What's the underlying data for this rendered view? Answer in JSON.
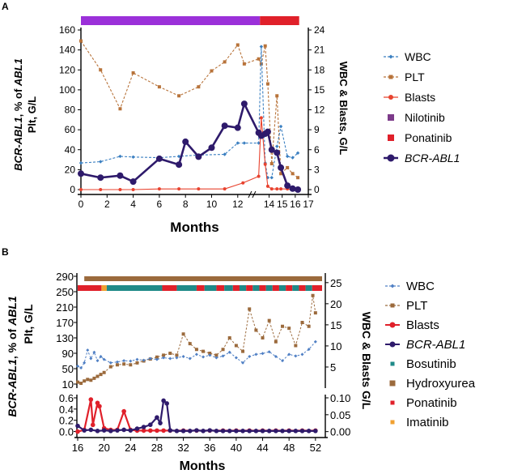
{
  "figure": {
    "panel_a_label": "A",
    "panel_b_label": "B"
  },
  "chart_data": [
    {
      "panel": "A",
      "type": "line",
      "xlabel": "Months",
      "ylabel_left_main": "BCR-ABL1, % of ABL1",
      "ylabel_left_sub": "Plt, G/L",
      "ylabel_right": "WBC & Blasts, G/L",
      "xlim": [
        0,
        17
      ],
      "ylim_left": [
        0,
        160
      ],
      "ylim_right": [
        0,
        24
      ],
      "x_ticks": [
        0,
        2,
        4,
        6,
        8,
        10,
        12,
        14,
        15,
        16,
        17
      ],
      "x_tick_labels": [
        "0",
        "2",
        "4",
        "6",
        "8",
        "10",
        "12",
        "14",
        "15",
        "16",
        "17"
      ],
      "x_tick_positions": [
        0,
        2,
        4,
        6,
        8,
        10,
        12,
        14.4,
        15.4,
        16.4,
        17.4
      ],
      "y_left_ticks": [
        0,
        20,
        40,
        60,
        80,
        100,
        120,
        140,
        160
      ],
      "y_right_ticks": [
        0,
        3,
        6,
        9,
        12,
        15,
        18,
        21,
        24
      ],
      "axis_break_x": 13.0,
      "treatment_bars": [
        {
          "name": "Nilotinib",
          "color": "#9b30d9",
          "start": 0,
          "end": 13.7
        },
        {
          "name": "Ponatinib",
          "color": "#e0202a",
          "start": 13.7,
          "end": 16.7
        }
      ],
      "series": [
        {
          "name": "WBC",
          "axis": "right",
          "color": "#3a7fc1",
          "style": "dashed",
          "marker": "diamond",
          "x": [
            0,
            1.5,
            3,
            4,
            6,
            7.5,
            9,
            11,
            12,
            12.5,
            13.6,
            13.8,
            14.1,
            14.3,
            14.6,
            15,
            15.3,
            15.8,
            16.2,
            16.6
          ],
          "y": [
            4,
            4.2,
            5,
            4.9,
            4.8,
            5,
            5.2,
            5.3,
            7,
            7,
            7,
            21.5,
            4,
            1.8,
            1.8,
            6.5,
            9.5,
            5,
            4.8,
            5.5
          ]
        },
        {
          "name": "PLT",
          "axis": "left",
          "color": "#b8733a",
          "style": "dashed",
          "marker": "square",
          "x": [
            0,
            1.5,
            3,
            4,
            6,
            7.5,
            9,
            10,
            11,
            12,
            12.5,
            13.6,
            13.8,
            14.1,
            14.3,
            14.6,
            15,
            15.3,
            15.8,
            16.2,
            16.6
          ],
          "y": [
            149,
            120,
            81,
            117,
            103,
            94,
            103,
            119,
            128,
            145,
            126,
            131,
            126,
            144,
            106,
            26,
            94,
            16,
            22,
            16,
            12
          ]
        },
        {
          "name": "Blasts",
          "axis": "right",
          "color": "#e8432f",
          "style": "solid",
          "marker": "circle",
          "x": [
            0,
            1.5,
            3,
            4,
            6,
            7.5,
            9,
            11,
            12.4,
            13.6,
            13.8,
            14.1,
            14.3,
            14.6,
            15,
            15.3,
            15.8,
            16.2,
            16.6
          ],
          "y": [
            0,
            0,
            0,
            0,
            0.1,
            0.1,
            0.1,
            0.1,
            1,
            2,
            10.8,
            3.8,
            0.5,
            0.1,
            0.1,
            0.1,
            0.1,
            0,
            0
          ]
        },
        {
          "name": "BCR-ABL1",
          "axis": "left",
          "color": "#2e1a6b",
          "style": "solid-thick",
          "marker": "circle",
          "x": [
            0,
            1.5,
            3,
            4,
            6,
            7.5,
            8,
            9,
            10,
            11,
            12,
            12.5,
            13.6,
            13.8,
            14.1,
            14.3,
            14.6,
            15,
            15.3,
            15.8,
            16.2,
            16.6
          ],
          "y": [
            16,
            12,
            14,
            8,
            31,
            25,
            48,
            33,
            42,
            64,
            62,
            86,
            57,
            54,
            56,
            58,
            40,
            37,
            22,
            4,
            1,
            0
          ]
        }
      ],
      "legend": [
        "WBC",
        "PLT",
        "Blasts",
        "Nilotinib",
        "Ponatinib",
        "BCR-ABL1"
      ]
    },
    {
      "panel": "B",
      "type": "line",
      "xlabel": "Months",
      "ylabel_left_main": "BCR-ABL1, % of ABL1",
      "ylabel_left_sub": "Plt, G/L",
      "ylabel_right": "WBC & Blasts G/L",
      "xlim": [
        16,
        53
      ],
      "x_ticks": [
        16,
        20,
        24,
        28,
        32,
        36,
        40,
        44,
        48,
        52
      ],
      "upper": {
        "ylim_left": [
          10,
          290
        ],
        "y_left_ticks": [
          10,
          50,
          90,
          130,
          170,
          210,
          250,
          290
        ],
        "ylim_right": [
          0,
          26.5
        ],
        "y_right_ticks": [
          5,
          10,
          15,
          20,
          25
        ]
      },
      "lower": {
        "ylim_left": [
          -0.05,
          0.6
        ],
        "y_left_ticks": [
          0.0,
          0.2,
          0.4,
          0.6
        ],
        "ylim_right": [
          -0.008,
          0.1
        ],
        "y_right_ticks": [
          0.0,
          0.05,
          0.1
        ],
        "y_right_tick_labels": [
          "0.00",
          "0.05",
          "0.10"
        ]
      },
      "treatment_bars": [
        {
          "name": "Hydroxyurea",
          "color": "#9b6a3c",
          "start": 17,
          "end": 53,
          "row": "top"
        },
        {
          "name": "Ponatinib",
          "color": "#e0202a",
          "start": 16,
          "end": 19.6,
          "row": "bottom"
        },
        {
          "name": "Imatinib",
          "color": "#f0a030",
          "start": 19.6,
          "end": 20.4,
          "row": "bottom"
        },
        {
          "name": "Bosutinib",
          "color": "#1f8a88",
          "start": 20.4,
          "end": 28.8,
          "row": "bottom"
        },
        {
          "name": "Ponatinib",
          "color": "#e0202a",
          "start": 28.8,
          "end": 31,
          "row": "bottom"
        },
        {
          "name": "Bosutinib",
          "color": "#1f8a88",
          "start": 31,
          "end": 34,
          "row": "bottom"
        },
        {
          "name": "Ponatinib",
          "color": "#e0202a",
          "start": 34,
          "end": 35.2,
          "row": "bottom"
        },
        {
          "name": "Bosutinib",
          "color": "#1f8a88",
          "start": 35.2,
          "end": 37,
          "row": "bottom"
        },
        {
          "name": "Ponatinib",
          "color": "#e0202a",
          "start": 37,
          "end": 38.2,
          "row": "bottom"
        },
        {
          "name": "Bosutinib",
          "color": "#1f8a88",
          "start": 38.2,
          "end": 39.5,
          "row": "bottom"
        },
        {
          "name": "Ponatinib",
          "color": "#e0202a",
          "start": 39.5,
          "end": 40.5,
          "row": "bottom"
        },
        {
          "name": "Bosutinib",
          "color": "#1f8a88",
          "start": 40.5,
          "end": 41.5,
          "row": "bottom"
        },
        {
          "name": "Ponatinib",
          "color": "#e0202a",
          "start": 41.5,
          "end": 42.5,
          "row": "bottom"
        },
        {
          "name": "Bosutinib",
          "color": "#1f8a88",
          "start": 42.5,
          "end": 43.5,
          "row": "bottom"
        },
        {
          "name": "Ponatinib",
          "color": "#e0202a",
          "start": 43.5,
          "end": 44.5,
          "row": "bottom"
        },
        {
          "name": "Bosutinib",
          "color": "#1f8a88",
          "start": 44.5,
          "end": 45.5,
          "row": "bottom"
        },
        {
          "name": "Ponatinib",
          "color": "#e0202a",
          "start": 45.5,
          "end": 46.5,
          "row": "bottom"
        },
        {
          "name": "Bosutinib",
          "color": "#1f8a88",
          "start": 46.5,
          "end": 47.5,
          "row": "bottom"
        },
        {
          "name": "Ponatinib",
          "color": "#e0202a",
          "start": 47.5,
          "end": 48.5,
          "row": "bottom"
        },
        {
          "name": "Bosutinib",
          "color": "#1f8a88",
          "start": 48.5,
          "end": 49.5,
          "row": "bottom"
        },
        {
          "name": "Ponatinib",
          "color": "#e0202a",
          "start": 49.5,
          "end": 50.5,
          "row": "bottom"
        },
        {
          "name": "Bosutinib",
          "color": "#1f8a88",
          "start": 50.5,
          "end": 51.5,
          "row": "bottom"
        },
        {
          "name": "Ponatinib",
          "color": "#e0202a",
          "start": 51.5,
          "end": 53,
          "row": "bottom"
        }
      ],
      "series": [
        {
          "name": "WBC",
          "axis": "right",
          "part": "upper",
          "color": "#4f7fc4",
          "style": "dashed",
          "marker": "diamond",
          "x": [
            16,
            16.5,
            17,
            17.5,
            18,
            18.5,
            19,
            19.5,
            20,
            21,
            22,
            23,
            24,
            25,
            26,
            27,
            28,
            29,
            30,
            31,
            32,
            33,
            34,
            35,
            36,
            37,
            38,
            39,
            40,
            41,
            42,
            43,
            44,
            45,
            46,
            47,
            48,
            49,
            50,
            51,
            52
          ],
          "y": [
            5.2,
            4.8,
            6,
            9,
            7,
            8.5,
            6.5,
            7.5,
            6.8,
            6,
            6.2,
            6.5,
            6.4,
            6.8,
            6.6,
            7,
            6.8,
            7.2,
            7,
            7.2,
            7.5,
            7,
            8,
            7.4,
            7.8,
            7.2,
            7.6,
            8.5,
            7.2,
            6,
            7.5,
            8,
            8.2,
            8.6,
            7.5,
            6.5,
            8,
            7.6,
            8,
            9.2,
            11
          ]
        },
        {
          "name": "PLT",
          "axis": "left",
          "part": "upper",
          "color": "#9b6a3c",
          "style": "dashed",
          "marker": "square",
          "x": [
            16,
            16.5,
            17,
            17.5,
            18,
            18.5,
            19,
            19.5,
            20,
            21,
            22,
            23,
            24,
            25,
            26,
            27,
            28,
            29,
            30,
            31,
            32,
            33,
            34,
            35,
            36,
            37,
            38,
            39,
            40,
            41,
            42,
            43,
            44,
            45,
            46,
            47,
            48,
            49,
            50,
            51,
            51.6,
            52
          ],
          "y": [
            15,
            12,
            18,
            22,
            20,
            25,
            30,
            35,
            40,
            55,
            60,
            62,
            60,
            65,
            70,
            75,
            80,
            85,
            90,
            85,
            140,
            115,
            100,
            95,
            90,
            85,
            100,
            130,
            110,
            95,
            205,
            150,
            130,
            175,
            120,
            160,
            155,
            110,
            170,
            160,
            240,
            195
          ]
        },
        {
          "name": "BCR-ABL1",
          "axis": "left",
          "part": "lower",
          "color": "#2e1a6b",
          "style": "solid",
          "marker": "circle",
          "x": [
            16,
            17,
            18,
            19,
            20,
            21,
            22,
            23,
            24,
            25,
            26,
            27,
            28,
            28.5,
            29,
            29.5,
            30,
            31,
            32,
            33,
            34,
            35,
            36,
            37,
            38,
            39,
            40,
            41,
            42,
            43,
            44,
            45,
            46,
            47,
            48,
            49,
            50,
            51,
            52
          ],
          "y": [
            0.1,
            0.02,
            0.03,
            0.01,
            0.02,
            0.01,
            0.02,
            0.03,
            0.02,
            0.05,
            0.08,
            0.12,
            0.25,
            0.15,
            0.55,
            0.5,
            0.02,
            0.01,
            0.01,
            0.01,
            0.02,
            0.01,
            0.02,
            0.01,
            0.01,
            0.01,
            0.01,
            0.01,
            0.01,
            0.01,
            0.01,
            0.01,
            0.01,
            0.01,
            0.01,
            0.01,
            0.01,
            0.01,
            0.01
          ]
        },
        {
          "name": "Blasts",
          "axis": "right",
          "part": "lower",
          "color": "#e0202a",
          "style": "solid",
          "marker": "circle",
          "x": [
            16,
            17,
            18,
            18.3,
            19,
            19.3,
            20,
            21,
            22,
            23,
            24,
            25,
            26,
            27,
            28,
            29,
            30,
            32,
            34,
            36,
            38,
            40,
            42,
            44,
            46,
            48,
            50,
            52
          ],
          "y": [
            0,
            0.005,
            0.095,
            0.02,
            0.085,
            0.075,
            0.01,
            0.005,
            0.005,
            0.06,
            0.005,
            0.003,
            0.003,
            0.003,
            0.003,
            0.003,
            0.003,
            0.003,
            0.003,
            0.003,
            0.003,
            0.003,
            0.003,
            0.003,
            0.003,
            0.003,
            0.003,
            0.003
          ]
        }
      ],
      "legend": [
        "WBC",
        "PLT",
        "Blasts",
        "BCR-ABL1",
        "Bosutinib",
        "Hydroxyurea",
        "Ponatinib",
        "Imatinib"
      ]
    }
  ]
}
